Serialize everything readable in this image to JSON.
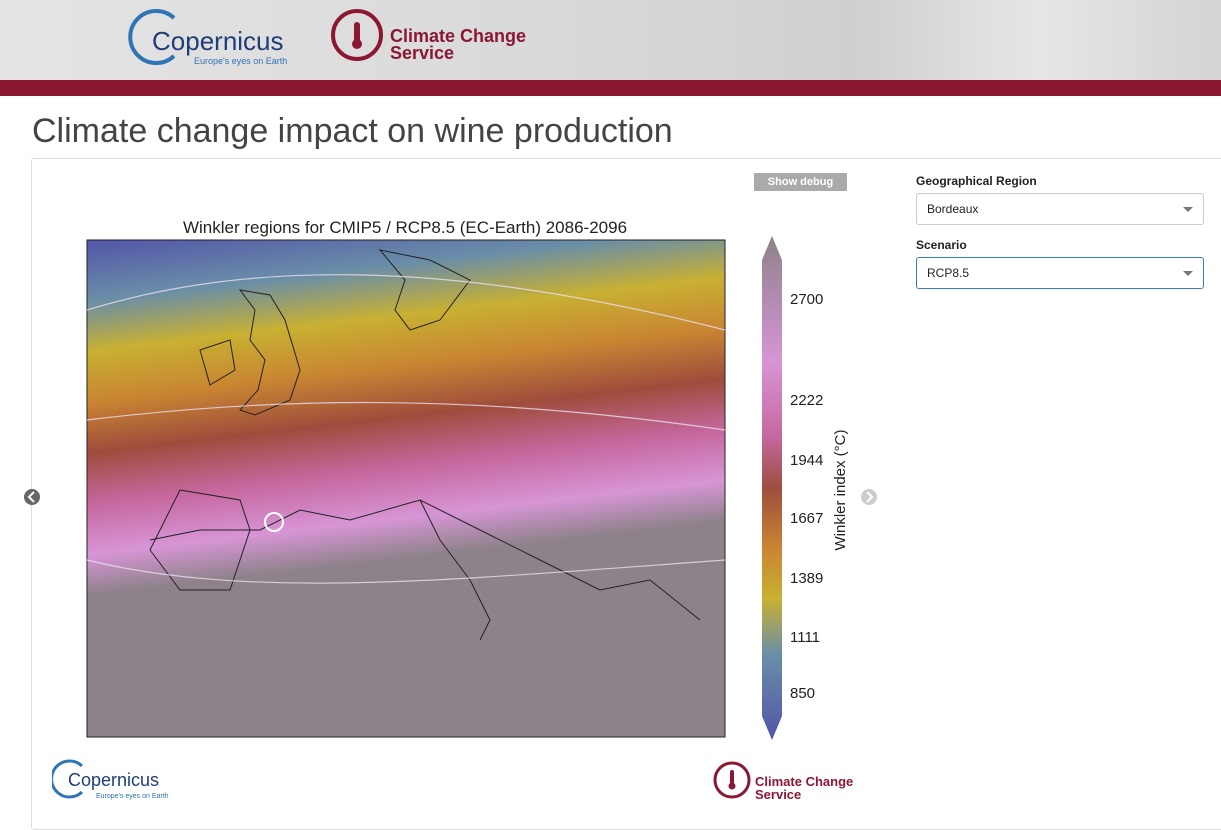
{
  "header": {
    "logo_name": "Copernicus",
    "logo_tagline": "Europe's eyes on Earth",
    "service_line1": "Climate Change",
    "service_line2": "Service"
  },
  "title": "Climate change impact on wine production",
  "viewer": {
    "debug_button": "Show debug",
    "map_title": "Winkler regions for CMIP5 / RCP8.5 (EC-Earth) 2086-2096",
    "colorbar_label": "Winkler index (°C)",
    "colorbar_ticks": [
      2700,
      2222,
      1944,
      1667,
      1389,
      1111,
      850
    ]
  },
  "controls": {
    "region_label": "Geographical Region",
    "region_value": "Bordeaux",
    "scenario_label": "Scenario",
    "scenario_value": "RCP8.5"
  }
}
